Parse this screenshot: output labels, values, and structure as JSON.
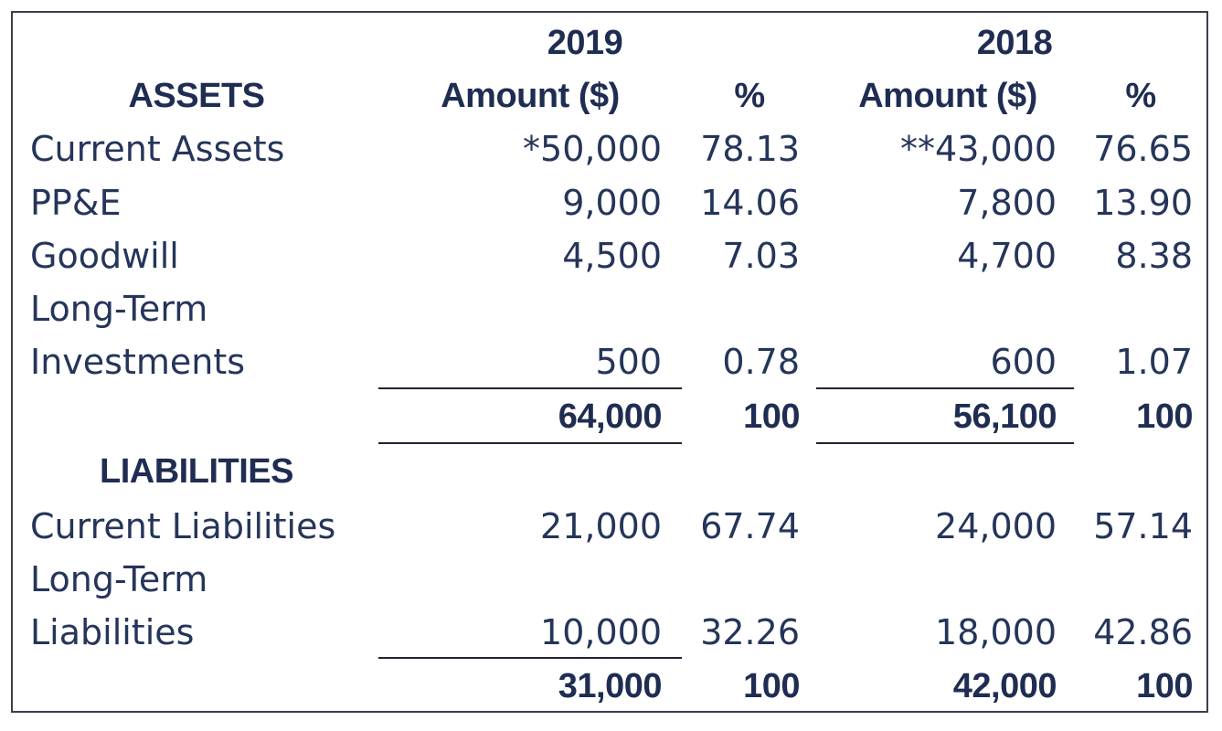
{
  "header": {
    "year_2019": "2019",
    "year_2018": "2018",
    "assets_heading": "ASSETS",
    "amount_label_2019": "Amount ($)",
    "pct_label_2019": "%",
    "amount_label_2018": "Amount ($)",
    "pct_label_2018": "%"
  },
  "assets": {
    "rows": [
      {
        "label": "Current Assets",
        "amount_2019": "*50,000",
        "pct_2019": "78.13",
        "amount_2018": "**43,000",
        "pct_2018": "76.65"
      },
      {
        "label": "PP&E",
        "amount_2019": "9,000",
        "pct_2019": "14.06",
        "amount_2018": "7,800",
        "pct_2018": "13.90"
      },
      {
        "label": "Goodwill",
        "amount_2019": "4,500",
        "pct_2019": "7.03",
        "amount_2018": "4,700",
        "pct_2018": "8.38"
      },
      {
        "label_line1": "Long-Term",
        "label_line2": "Investments",
        "amount_2019": "500",
        "pct_2019": "0.78",
        "amount_2018": "600",
        "pct_2018": "1.07"
      }
    ],
    "total": {
      "amount_2019": "64,000",
      "pct_2019": "100",
      "amount_2018": "56,100",
      "pct_2018": "100"
    }
  },
  "liabilities": {
    "heading": "LIABILITIES",
    "rows": [
      {
        "label": "Current Liabilities",
        "amount_2019": "21,000",
        "pct_2019": "67.74",
        "amount_2018": "24,000",
        "pct_2018": "57.14"
      },
      {
        "label_line1": "Long-Term",
        "label_line2": "Liabilities",
        "amount_2019": "10,000",
        "pct_2019": "32.26",
        "amount_2018": "18,000",
        "pct_2018": "42.86"
      }
    ],
    "total": {
      "amount_2019": "31,000",
      "pct_2019": "100",
      "amount_2018": "42,000",
      "pct_2018": "100"
    }
  },
  "colors": {
    "text": "#25355a",
    "border": "#3a3f4a"
  }
}
